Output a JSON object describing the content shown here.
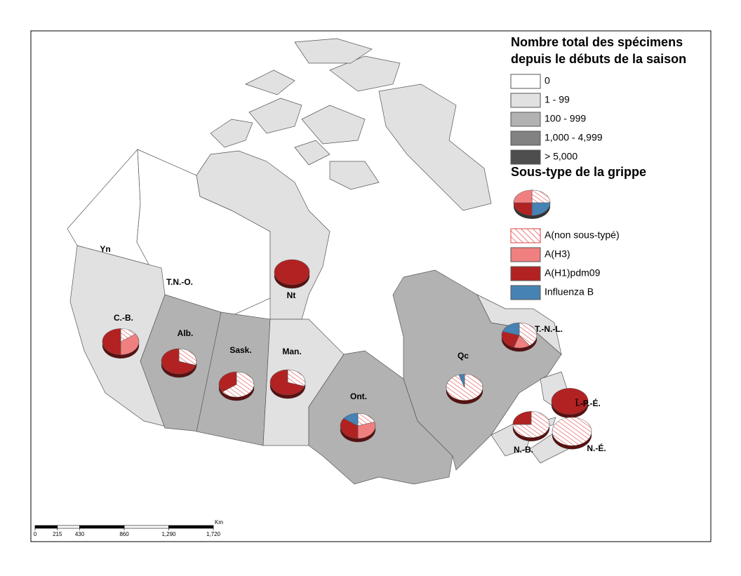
{
  "map": {
    "legend": {
      "title": [
        "Nombre total des spécimens",
        "depuis le débuts de la saison"
      ],
      "classes": [
        {
          "label": "0",
          "color": "#ffffff"
        },
        {
          "label": "1 - 99",
          "color": "#e1e1e1"
        },
        {
          "label": "100 - 999",
          "color": "#b2b2b2"
        },
        {
          "label": "1,000 - 4,999",
          "color": "#828282"
        },
        {
          "label": "> 5,000",
          "color": "#4e4e4e"
        }
      ],
      "subtype_title": "Sous-type de la grippe",
      "subtypes": [
        {
          "label": "A(non sous-typé)",
          "color": "hatch"
        },
        {
          "label": "A(H3)",
          "color": "#f08080"
        },
        {
          "label": "A(H1)pdm09",
          "color": "#b22222"
        },
        {
          "label": "Influenza B",
          "color": "#4682b4"
        }
      ]
    },
    "regions": [
      {
        "label": "Yn",
        "fill": "#ffffff"
      },
      {
        "label": "T.N.-O.",
        "fill": "#ffffff"
      },
      {
        "label": "Nt",
        "fill": "#e1e1e1",
        "shares": [
          0,
          0,
          100,
          0
        ]
      },
      {
        "label": "C.-B.",
        "fill": "#e1e1e1",
        "shares": [
          15,
          35,
          50,
          0
        ]
      },
      {
        "label": "Alb.",
        "fill": "#b2b2b2",
        "shares": [
          30,
          0,
          70,
          0
        ]
      },
      {
        "label": "Sask.",
        "fill": "#b2b2b2",
        "shares": [
          65,
          0,
          35,
          0
        ]
      },
      {
        "label": "Man.",
        "fill": "#e1e1e1",
        "shares": [
          30,
          0,
          70,
          0
        ]
      },
      {
        "label": "Ont.",
        "fill": "#b2b2b2",
        "shares": [
          20,
          30,
          35,
          15
        ]
      },
      {
        "label": "Qc",
        "fill": "#b2b2b2",
        "shares": [
          95,
          0,
          0,
          5
        ]
      },
      {
        "label": "T.-N.-L.",
        "fill": "#e1e1e1",
        "shares": [
          40,
          15,
          25,
          20
        ]
      },
      {
        "label": "Î.-P.-É.",
        "fill": "#e1e1e1",
        "shares": [
          0,
          0,
          100,
          0
        ]
      },
      {
        "label": "N.-B.",
        "fill": "#e1e1e1",
        "shares": [
          75,
          0,
          25,
          0
        ]
      },
      {
        "label": "N.-É.",
        "fill": "#e1e1e1",
        "shares": [
          100,
          0,
          0,
          0
        ]
      }
    ],
    "scale_bar": {
      "unit": "Km",
      "ticks": [
        0,
        215,
        430,
        860,
        {
          "value": 1290,
          "label": "1,290"
        },
        {
          "value": 1720,
          "label": "1,720"
        }
      ]
    }
  }
}
